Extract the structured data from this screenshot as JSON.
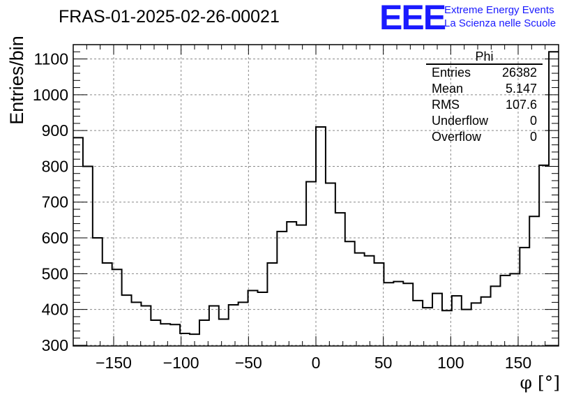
{
  "header": {
    "title": "FRAS-01-2025-02-26-00021",
    "logo_text": "EEE",
    "logo_line1": "Extreme Energy Events",
    "logo_line2": "La Scienza nelle Scuole"
  },
  "stats": {
    "name": "Phi",
    "rows": [
      {
        "label": "Entries",
        "value": "26382"
      },
      {
        "label": "Mean",
        "value": "5.147"
      },
      {
        "label": "RMS",
        "value": "107.6"
      },
      {
        "label": "Underflow",
        "value": "0"
      },
      {
        "label": "Overflow",
        "value": "0"
      }
    ]
  },
  "chart_data": {
    "type": "histogram",
    "title": "FRAS-01-2025-02-26-00021",
    "xlabel": "φ [°]",
    "ylabel": "Entries/bin",
    "xlim": [
      -180,
      180
    ],
    "ylim": [
      298,
      1140
    ],
    "grid": true,
    "bin_width": 7.2,
    "x_ticks": [
      -150,
      -100,
      -50,
      0,
      50,
      100,
      150
    ],
    "x_tick_labels": [
      "−150",
      "−100",
      "−50",
      "0",
      "50",
      "100",
      "150"
    ],
    "y_ticks": [
      300,
      400,
      500,
      600,
      700,
      800,
      900,
      1000,
      1100
    ],
    "y_tick_labels": [
      "300",
      "400",
      "500",
      "600",
      "700",
      "800",
      "900",
      "1000",
      "1100"
    ],
    "values": [
      880,
      800,
      600,
      530,
      512,
      440,
      420,
      410,
      370,
      360,
      358,
      333,
      331,
      370,
      410,
      373,
      413,
      420,
      453,
      448,
      530,
      618,
      645,
      636,
      757,
      910,
      753,
      670,
      590,
      558,
      550,
      530,
      475,
      478,
      473,
      425,
      405,
      445,
      397,
      438,
      400,
      418,
      435,
      465,
      495,
      500,
      573,
      660,
      803,
      1120
    ]
  }
}
